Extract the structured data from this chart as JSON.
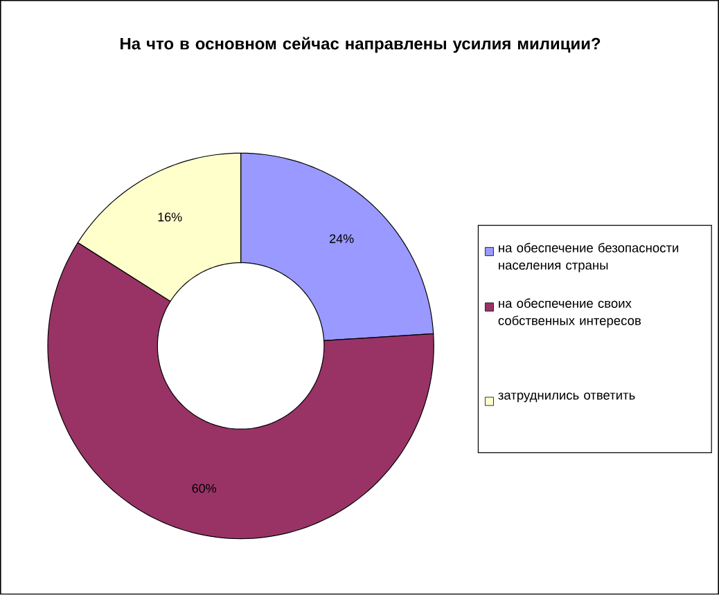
{
  "chart_data": {
    "type": "donut",
    "title": "На что в основном сейчас направлены усилия милиции?",
    "categories": [
      "на обеспечение безопасности населения страны",
      "на обеспечение своих собственных интересов",
      "затруднились ответить"
    ],
    "values": [
      24,
      60,
      16
    ],
    "colors": [
      "#9999ff",
      "#993366",
      "#ffffcc"
    ],
    "value_labels": [
      "24%",
      "60%",
      "16%"
    ],
    "legend": "right"
  }
}
